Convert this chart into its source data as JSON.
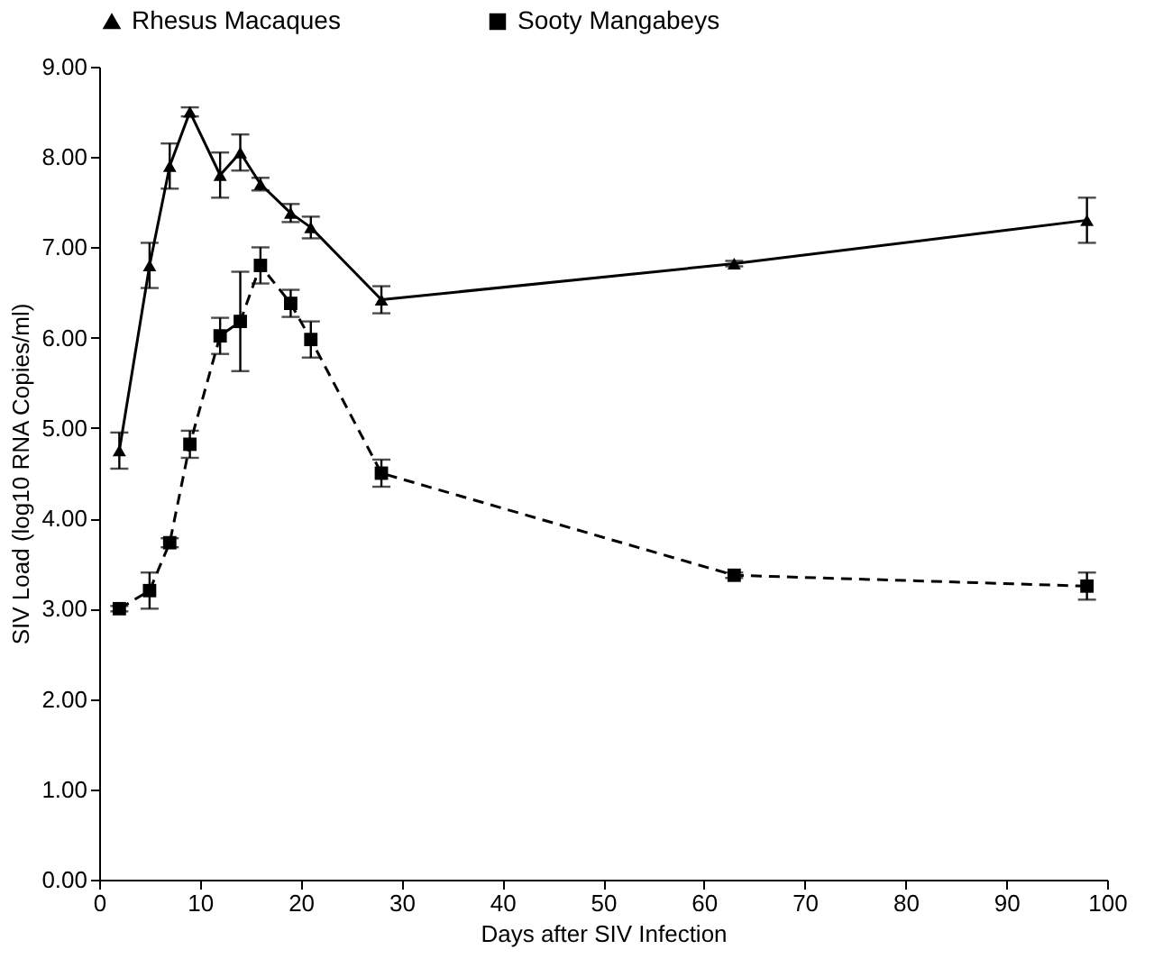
{
  "chart_data": {
    "type": "line",
    "xlabel": "Days after SIV Infection",
    "ylabel": "SIV Load (log10 RNA Copies/ml)",
    "x": [
      2,
      5,
      7,
      9,
      12,
      14,
      16,
      19,
      21,
      28,
      63,
      98
    ],
    "series": [
      {
        "name": "Rhesus Macaques",
        "color": "#000000",
        "marker": "triangle",
        "line_style": "solid",
        "values": [
          4.75,
          6.8,
          7.9,
          8.5,
          7.8,
          8.05,
          7.7,
          7.38,
          7.22,
          6.42,
          6.82,
          7.3
        ],
        "errors": [
          0.2,
          0.25,
          0.25,
          0.05,
          0.25,
          0.2,
          0.07,
          0.1,
          0.12,
          0.15,
          0.03,
          0.25
        ]
      },
      {
        "name": "Sooty Mangabeys",
        "color": "#000000",
        "marker": "square",
        "line_style": "dashed",
        "values": [
          3.0,
          3.2,
          3.73,
          4.82,
          6.02,
          6.18,
          6.8,
          6.38,
          5.98,
          4.5,
          3.37,
          3.25
        ],
        "errors": [
          0.03,
          0.2,
          0.05,
          0.15,
          0.2,
          0.55,
          0.2,
          0.15,
          0.2,
          0.15,
          0.03,
          0.15
        ]
      }
    ],
    "xlim": [
      0,
      100
    ],
    "xticks": [
      0,
      10,
      20,
      30,
      40,
      50,
      60,
      70,
      80,
      90,
      100
    ],
    "ylim": [
      0,
      9
    ],
    "yticks": [
      {
        "value": 0,
        "label": "0.00"
      },
      {
        "value": 1,
        "label": "1.00"
      },
      {
        "value": 2,
        "label": "2.00"
      },
      {
        "value": 3,
        "label": "3.00"
      },
      {
        "value": 4,
        "label": "4.00"
      },
      {
        "value": 5,
        "label": "5.00"
      },
      {
        "value": 6,
        "label": "6.00"
      },
      {
        "value": 7,
        "label": "7.00"
      },
      {
        "value": 8,
        "label": "8.00"
      },
      {
        "value": 9,
        "label": "9.00"
      }
    ],
    "grid": false,
    "legend": "top"
  }
}
